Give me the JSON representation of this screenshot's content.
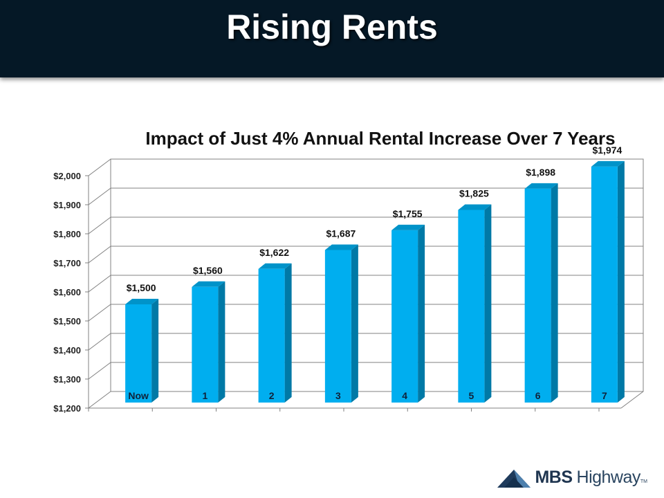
{
  "header": {
    "title": "Rising Rents"
  },
  "chart_data": {
    "type": "bar",
    "title": "Impact of Just 4% Annual Rental Increase Over 7 Years",
    "xlabel": "",
    "ylabel": "",
    "categories": [
      "Now",
      "1",
      "2",
      "3",
      "4",
      "5",
      "6",
      "7"
    ],
    "values": [
      1500,
      1560,
      1622,
      1687,
      1755,
      1825,
      1898,
      1974
    ],
    "data_labels": [
      "$1,500",
      "$1,560",
      "$1,622",
      "$1,687",
      "$1,755",
      "$1,825",
      "$1,898",
      "$1,974"
    ],
    "ylim": [
      1200,
      2000
    ],
    "yticks": [
      1200,
      1300,
      1400,
      1500,
      1600,
      1700,
      1800,
      1900,
      2000
    ],
    "ytick_labels": [
      "$1,200",
      "$1,300",
      "$1,400",
      "$1,500",
      "$1,600",
      "$1,700",
      "$1,800",
      "$1,900",
      "$2,000"
    ],
    "grid": true,
    "legend": "none",
    "style": "3d-column",
    "colors": {
      "bar_front": "#00AEEF",
      "bar_side": "#0079A6",
      "bar_top": "#0093C9",
      "category_label": "#10223A"
    }
  },
  "logo": {
    "mbs": "MBS",
    "highway": "Highway",
    "tm": "TM"
  }
}
